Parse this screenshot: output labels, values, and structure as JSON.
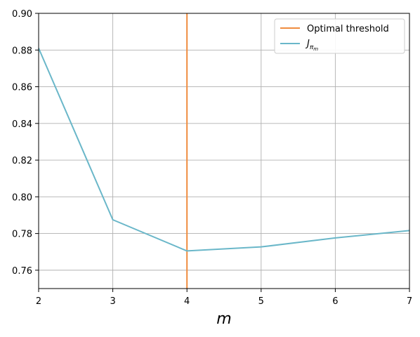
{
  "chart_data": {
    "type": "line",
    "title": "",
    "xlabel": "m",
    "ylabel": "",
    "xlim": [
      2,
      7
    ],
    "ylim": [
      0.75,
      0.9
    ],
    "xticks": [
      2,
      3,
      4,
      5,
      6,
      7
    ],
    "xtick_labels": [
      "2",
      "3",
      "4",
      "5",
      "6",
      "7"
    ],
    "yticks": [
      0.76,
      0.78,
      0.8,
      0.82,
      0.84,
      0.86,
      0.88,
      0.9
    ],
    "ytick_labels": [
      "0.76",
      "0.78",
      "0.80",
      "0.82",
      "0.84",
      "0.86",
      "0.88",
      "0.90"
    ],
    "grid": true,
    "legend_position": "top-right",
    "series": [
      {
        "name": "J",
        "name_subscript": "π",
        "name_subsubscript": "m",
        "color": "#6ab7c9",
        "x": [
          2,
          3,
          4,
          5,
          6,
          7
        ],
        "y": [
          0.881,
          0.7875,
          0.7705,
          0.7727,
          0.7776,
          0.7816
        ]
      }
    ],
    "vlines": [
      {
        "name": "Optimal threshold",
        "x": 4,
        "color": "#f08c3f"
      }
    ]
  }
}
